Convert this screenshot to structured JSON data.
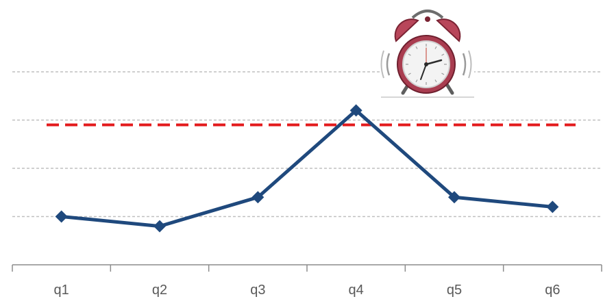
{
  "chart_data": {
    "type": "line",
    "title": "",
    "xlabel": "",
    "ylabel": "",
    "categories": [
      "q1",
      "q2",
      "q3",
      "q4",
      "q5",
      "q6"
    ],
    "series": [
      {
        "values": [
          1.0,
          0.8,
          1.4,
          3.2,
          1.4,
          1.2
        ],
        "color": "#1f497d",
        "marker": "diamond"
      }
    ],
    "reference_line": {
      "value": 2.9,
      "color": "#e31a1c",
      "style": "dashed"
    },
    "ylim": [
      0,
      4
    ],
    "gridlines": [
      1,
      2,
      3,
      4
    ],
    "grid": true,
    "legend": "none",
    "y_axis_labels": "hidden",
    "icon": "alarm-clock-icon"
  }
}
